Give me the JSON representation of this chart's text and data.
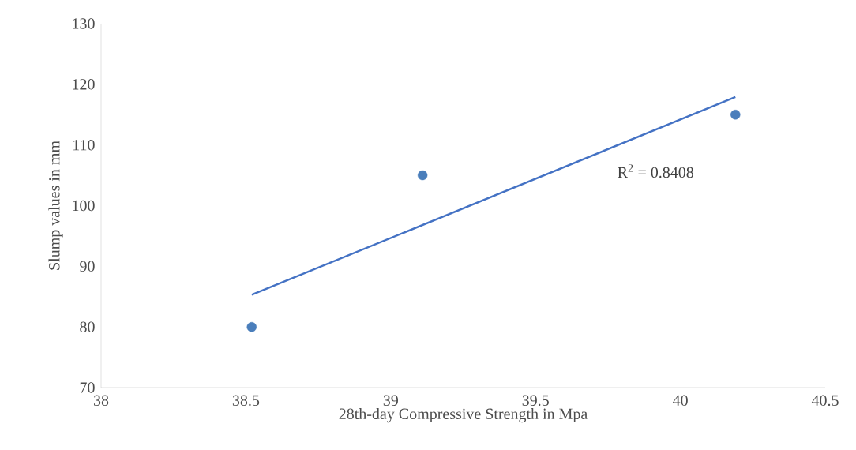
{
  "chart_data": {
    "type": "scatter",
    "xlabel": "28th-day Compressive Strength in Mpa",
    "ylabel": "Slump values in mm",
    "xlim": [
      38,
      40.5
    ],
    "xticks": [
      38,
      38.5,
      39,
      39.5,
      40,
      40.5
    ],
    "ylim": [
      70,
      130
    ],
    "yticks": [
      70,
      80,
      90,
      100,
      110,
      120,
      130
    ],
    "marker": "circle",
    "annotations": [
      "R$^{2}$ = 0.8408"
    ],
    "series": [
      {
        "color": "#4a7ebb",
        "x": [
          38.52,
          39.11,
          40.19
        ],
        "values": [
          80,
          105,
          115
        ]
      },
      {
        "type": "line",
        "color": "#4472c4",
        "x": [
          38.52,
          40.19
        ],
        "values": [
          85.3,
          117.9
        ],
        "marker": "none"
      }
    ]
  }
}
